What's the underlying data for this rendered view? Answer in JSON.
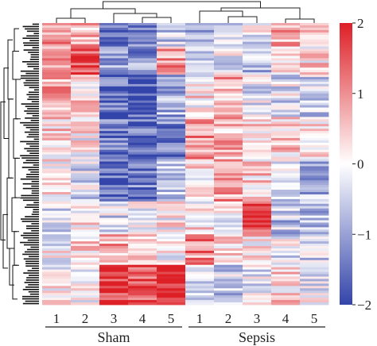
{
  "chart_data": {
    "type": "heatmap",
    "title": "",
    "xlabel": "",
    "ylabel": "",
    "columns": [
      "1",
      "2",
      "3",
      "4",
      "5",
      "1",
      "2",
      "3",
      "4",
      "5"
    ],
    "groups": [
      {
        "name": "Sham",
        "columns": [
          0,
          1,
          2,
          3,
          4
        ]
      },
      {
        "name": "Sepsis",
        "columns": [
          5,
          6,
          7,
          8,
          9
        ]
      }
    ],
    "row_count": 120,
    "colorbar": {
      "min": -2,
      "max": 2,
      "ticks": [
        "2",
        "1",
        "0",
        "−1",
        "−2"
      ],
      "tick_values": [
        2,
        1,
        0,
        -1,
        -2
      ],
      "colors": {
        "low": "#3344aa",
        "mid": "#ffffff",
        "high": "#dd1f26"
      }
    },
    "dendrogram": {
      "rows": true,
      "columns": true
    },
    "row_blocks": [
      {
        "from": 0,
        "to": 0.08,
        "means": [
          1.0,
          0.6,
          -1.7,
          -1.2,
          -0.6,
          -0.8,
          -0.5,
          -0.2,
          0.6,
          0.9
        ]
      },
      {
        "from": 0.08,
        "to": 0.18,
        "means": [
          1.0,
          1.5,
          -1.0,
          -1.1,
          0.9,
          -0.5,
          -0.2,
          -0.8,
          0.1,
          0.3
        ]
      },
      {
        "from": 0.18,
        "to": 0.33,
        "means": [
          0.8,
          0.4,
          -1.6,
          -1.8,
          -0.9,
          0.2,
          0.7,
          -0.2,
          -0.3,
          -0.4
        ]
      },
      {
        "from": 0.33,
        "to": 0.48,
        "means": [
          0.4,
          0.1,
          -1.5,
          -1.6,
          -1.2,
          0.9,
          0.6,
          0.3,
          0.4,
          0.3
        ]
      },
      {
        "from": 0.48,
        "to": 0.63,
        "means": [
          0.2,
          -0.4,
          -1.7,
          -1.4,
          -0.7,
          0.2,
          0.8,
          0.4,
          -0.4,
          -0.8
        ]
      },
      {
        "from": 0.63,
        "to": 0.75,
        "means": [
          -0.3,
          0.2,
          -0.4,
          -0.2,
          0.1,
          0.2,
          -0.2,
          1.5,
          -0.6,
          -0.6
        ]
      },
      {
        "from": 0.75,
        "to": 0.86,
        "means": [
          -0.1,
          0.2,
          0.7,
          0.5,
          -0.1,
          1.0,
          0.3,
          0.3,
          -0.3,
          -0.5
        ]
      },
      {
        "from": 0.86,
        "to": 1.0,
        "means": [
          0.1,
          -0.1,
          1.8,
          1.6,
          2.0,
          -0.3,
          -0.5,
          -0.3,
          0.3,
          -0.2
        ]
      }
    ]
  }
}
